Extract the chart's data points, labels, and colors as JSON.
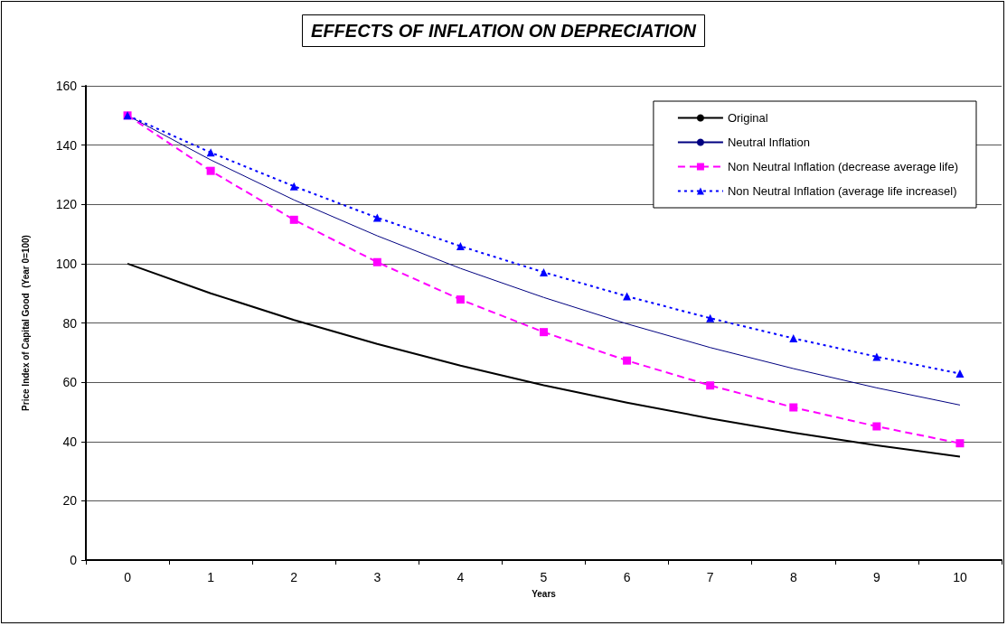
{
  "chart_data": {
    "type": "line",
    "title": "EFFECTS OF INFLATION ON DEPRECIATION",
    "xlabel": "Years",
    "ylabel": "Price Index of Capital Good  (Year 0=100)",
    "categories": [
      "0",
      "1",
      "2",
      "3",
      "4",
      "5",
      "6",
      "7",
      "8",
      "9",
      "10"
    ],
    "ylim": [
      0,
      160
    ],
    "yticks": [
      0,
      20,
      40,
      60,
      80,
      100,
      120,
      140,
      160
    ],
    "grid": "y",
    "legend": "top right",
    "series": [
      {
        "name": "Original",
        "color": "#000000",
        "marker": "none",
        "line_style": "solid",
        "values": [
          100,
          90,
          81,
          72.9,
          65.6,
          59,
          53.1,
          47.8,
          43,
          38.7,
          34.9
        ]
      },
      {
        "name": "Neutral Inflation",
        "color": "#000080",
        "marker": "none",
        "line_style": "solid",
        "values": [
          150,
          135,
          121.5,
          109.4,
          98.4,
          88.6,
          79.7,
          71.7,
          64.6,
          58.1,
          52.3
        ]
      },
      {
        "name": "Non Neutral Inflation (decrease average life)",
        "color": "#ff00ff",
        "marker": "square",
        "line_style": "dashed",
        "values": [
          150,
          131.3,
          114.8,
          100.5,
          87.9,
          76.9,
          67.3,
          58.9,
          51.5,
          45.1,
          39.4
        ]
      },
      {
        "name": "Non Neutral Inflation (average life increasel)",
        "color": "#0000ff",
        "marker": "triangle",
        "line_style": "dotted",
        "values": [
          150,
          137.5,
          126.1,
          115.5,
          105.9,
          97.1,
          89,
          81.6,
          74.8,
          68.6,
          62.9
        ]
      }
    ]
  }
}
